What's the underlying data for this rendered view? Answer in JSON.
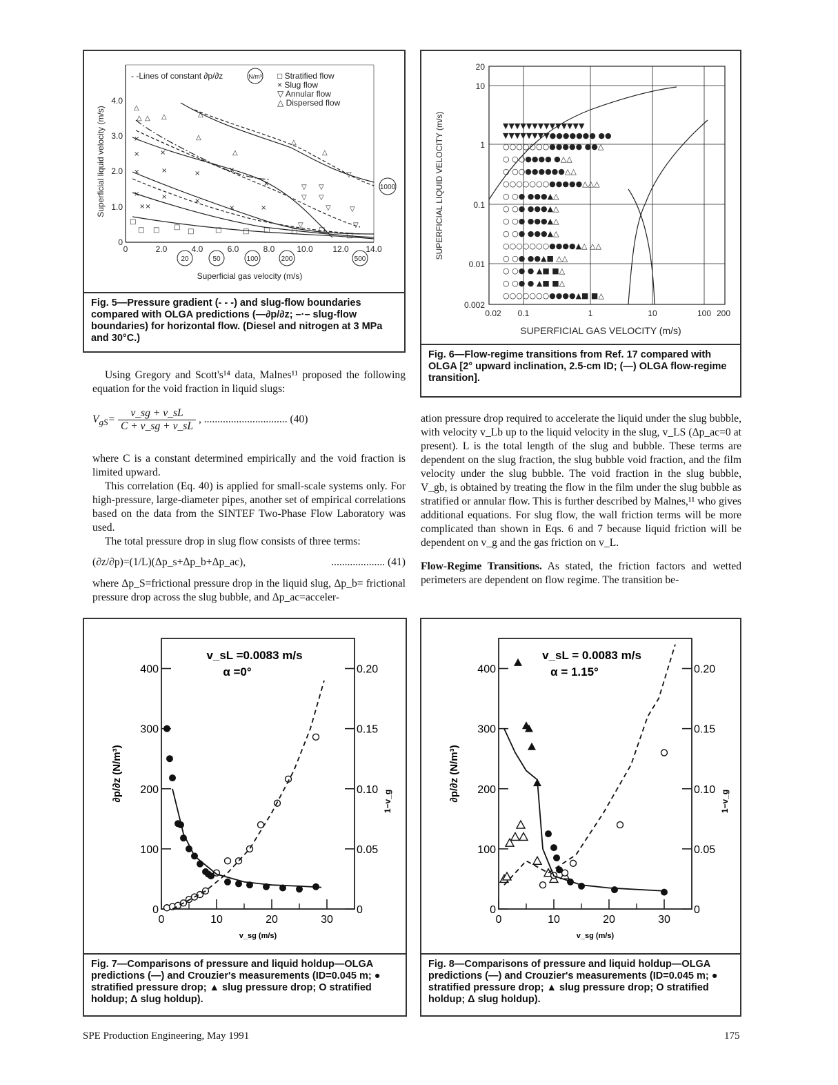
{
  "fig5": {
    "legend": [
      "- -Lines of constant ∂p/∂z",
      "N/m³",
      "□ Stratified flow",
      "× Slug flow",
      "▽ Annular flow",
      "△ Dispersed flow"
    ],
    "xlabel": "Superficial gas velocity (m/s)",
    "ylabel": "Superficial liquid velocity (m/s)",
    "xticks": [
      "0",
      "2.0",
      "4.0",
      "6.0",
      "8.0",
      "10.0",
      "12.0",
      "14.0"
    ],
    "yticks": [
      "0",
      "1.0",
      "2.0",
      "3.0",
      "4.0"
    ],
    "circled": [
      "20",
      "50",
      "100",
      "200",
      "500",
      "1000"
    ],
    "caption": "Fig. 5—Pressure gradient (- - -) and slug-flow boundaries compared with OLGA predictions (—∂p/∂z; –·– slug-flow boundaries) for horizontal flow. (Diesel and nitrogen at 3 MPa and 30°C.)"
  },
  "fig6": {
    "xlabel": "SUPERFICIAL GAS VELOCITY (m/s)",
    "ylabel": "SUPERFICIAL LIQUID VELOCITY (m/s)",
    "xticks": [
      "0.02",
      "0.1",
      "1",
      "10",
      "100",
      "200"
    ],
    "yticks": [
      "20",
      "10",
      "1",
      "0.1",
      "0.01",
      "0.002"
    ],
    "caption": "Fig. 6—Flow-regime transitions from Ref. 17 compared with OLGA [2° upward inclination, 2.5-cm ID; (—) OLGA flow-regime transition]."
  },
  "col_left": {
    "p1": "Using Gregory and Scott's¹⁴ data, Malnes¹¹ proposed the following equation for the void fraction in liquid slugs:",
    "eq40_lhs": "V",
    "eq40_sub": "gS",
    "eq40_num": "v_sg + v_sL",
    "eq40_den": "C + v_sg + v_sL",
    "eq40_no": ", ............................... (40)",
    "p2": "where C is a constant determined empirically and the void fraction is limited upward.",
    "p3": "This correlation (Eq. 40) is applied for small-scale systems only. For high-pressure, large-diameter pipes, another set of empirical correlations based on the data from the SINTEF Two-Phase Flow Laboratory was used.",
    "p4": "The total pressure drop in slug flow consists of three terms:",
    "eq41": "(∂z/∂p)=(1/L)(Δp_s+Δp_b+Δp_ac),",
    "eq41_no": ".................... (41)",
    "p5": "where Δp_S=frictional pressure drop in the liquid slug, Δp_b= frictional pressure drop across the slug bubble, and Δp_ac=acceler-"
  },
  "col_right": {
    "p1": "ation pressure drop required to accelerate the liquid under the slug bubble, with velocity v_Lb up to the liquid velocity in the slug, v_LS (Δp_ac=0 at present). L is the total length of the slug and bubble. These terms are dependent on the slug fraction, the slug bubble void fraction, and the film velocity under the slug bubble. The void fraction in the slug bubble, V_gb, is obtained by treating the flow in the film under the slug bubble as stratified or annular flow. This is further described by Malnes,¹¹ who gives additional equations. For slug flow, the wall friction terms will be more complicated than shown in Eqs. 6 and 7 because liquid friction will be dependent on v_g and the gas friction on v_L.",
    "heading": "Flow-Regime Transitions.",
    "p2": " As stated, the friction factors and wetted perimeters are dependent on flow regime. The transition be-"
  },
  "fig7": {
    "annot1": "v_sL =0.0083 m/s",
    "annot2": "α =0°",
    "xlabel": "v_sg (m/s)",
    "ylabel": "∂p/∂z (N/m³)",
    "y2label": "1−v_g",
    "xticks": [
      "0",
      "10",
      "20",
      "30"
    ],
    "yticks": [
      "0",
      "100",
      "200",
      "300",
      "400"
    ],
    "y2ticks": [
      "0",
      "0.05",
      "0.10",
      "0.15",
      "0.20"
    ],
    "caption": "Fig. 7—Comparisons of pressure and liquid holdup—OLGA predictions (—) and Crouzier's measurements (ID=0.045 m; ● stratified pressure drop; ▲ slug pressure drop; O stratified holdup; Δ slug holdup)."
  },
  "fig8": {
    "annot1": "v_sL = 0.0083 m/s",
    "annot2": "α = 1.15°",
    "xlabel": "v_sg (m/s)",
    "ylabel": "∂p/∂z (N/m³)",
    "y2label": "1−v_g",
    "xticks": [
      "0",
      "10",
      "20",
      "30"
    ],
    "yticks": [
      "0",
      "100",
      "200",
      "300",
      "400"
    ],
    "y2ticks": [
      "0",
      "0.05",
      "0.10",
      "0.15",
      "0.20"
    ],
    "caption": "Fig. 8—Comparisons of pressure and liquid holdup—OLGA predictions (—) and Crouzier's measurements (ID=0.045 m; ● stratified pressure drop; ▲ slug pressure drop; O stratified holdup; Δ slug holdup)."
  },
  "footer": {
    "left": "SPE Production Engineering, May 1991",
    "right": "175"
  },
  "chart_data": [
    {
      "id": "fig7",
      "type": "scatter",
      "xlim": [
        0,
        35
      ],
      "ylim": [
        0,
        450
      ],
      "y2lim": [
        0,
        0.225
      ],
      "series": [
        {
          "name": "stratified pressure drop",
          "marker": "filled-circle",
          "points": [
            [
              1,
              300
            ],
            [
              1.5,
              250
            ],
            [
              2,
              218
            ],
            [
              3,
              142
            ],
            [
              3.5,
              140
            ],
            [
              4,
              118
            ],
            [
              5,
              100
            ],
            [
              6,
              88
            ],
            [
              7,
              75
            ],
            [
              8,
              62
            ],
            [
              8.5,
              58
            ],
            [
              9,
              55
            ],
            [
              12,
              45
            ],
            [
              14,
              42
            ],
            [
              16,
              40
            ],
            [
              19,
              37
            ],
            [
              22,
              35
            ],
            [
              25,
              33
            ],
            [
              28,
              37
            ]
          ]
        },
        {
          "name": "stratified holdup",
          "marker": "open-circle",
          "axis": "right",
          "points": [
            [
              1,
              0.001
            ],
            [
              2,
              0.002
            ],
            [
              3,
              0.003
            ],
            [
              4,
              0.005
            ],
            [
              5,
              0.008
            ],
            [
              6,
              0.01
            ],
            [
              7,
              0.012
            ],
            [
              8,
              0.015
            ],
            [
              10,
              0.03
            ],
            [
              12,
              0.04
            ],
            [
              14,
              0.04
            ],
            [
              16,
              0.05
            ],
            [
              18,
              0.07
            ],
            [
              21,
              0.088
            ],
            [
              23,
              0.108
            ],
            [
              28,
              0.143
            ]
          ]
        },
        {
          "name": "OLGA pressure",
          "marker": "line",
          "points": [
            [
              2,
              200
            ],
            [
              4,
              125
            ],
            [
              6,
              88
            ],
            [
              10,
              58
            ],
            [
              15,
              45
            ],
            [
              20,
              40
            ],
            [
              25,
              38
            ],
            [
              29,
              36
            ]
          ]
        },
        {
          "name": "OLGA holdup",
          "marker": "dashed",
          "axis": "right",
          "points": [
            [
              2,
              0
            ],
            [
              8,
              0.015
            ],
            [
              12,
              0.03
            ],
            [
              16,
              0.05
            ],
            [
              20,
              0.08
            ],
            [
              24,
              0.115
            ],
            [
              27,
              0.15
            ],
            [
              29.5,
              0.19
            ]
          ]
        }
      ]
    },
    {
      "id": "fig8",
      "type": "scatter",
      "xlim": [
        0,
        35
      ],
      "ylim": [
        0,
        450
      ],
      "y2lim": [
        0,
        0.225
      ],
      "series": [
        {
          "name": "slug pressure drop",
          "marker": "filled-triangle",
          "points": [
            [
              3.5,
              410
            ],
            [
              5,
              305
            ],
            [
              5.5,
              300
            ],
            [
              6,
              270
            ],
            [
              7,
              210
            ]
          ]
        },
        {
          "name": "stratified pressure drop",
          "marker": "filled-circle",
          "points": [
            [
              9,
              125
            ],
            [
              10,
              102
            ],
            [
              10.5,
              85
            ],
            [
              11,
              65
            ],
            [
              13,
              45
            ],
            [
              15,
              38
            ],
            [
              21,
              32
            ],
            [
              30,
              28
            ]
          ]
        },
        {
          "name": "slug holdup",
          "marker": "open-triangle",
          "axis": "right",
          "points": [
            [
              1,
              0.025
            ],
            [
              1.5,
              0.027
            ],
            [
              2,
              0.055
            ],
            [
              3,
              0.06
            ],
            [
              4,
              0.07
            ],
            [
              4.5,
              0.06
            ],
            [
              7,
              0.04
            ],
            [
              9,
              0.03
            ],
            [
              10,
              0.025
            ],
            [
              12,
              0.028
            ]
          ]
        },
        {
          "name": "stratified holdup",
          "marker": "open-circle",
          "axis": "right",
          "points": [
            [
              8,
              0.02
            ],
            [
              10,
              0.028
            ],
            [
              12,
              0.03
            ],
            [
              13.5,
              0.038
            ],
            [
              22,
              0.07
            ],
            [
              30,
              0.13
            ]
          ]
        },
        {
          "name": "OLGA pressure",
          "marker": "line",
          "points": [
            [
              1,
              300
            ],
            [
              3,
              260
            ],
            [
              5,
              230
            ],
            [
              7,
              215
            ],
            [
              8,
              100
            ],
            [
              10,
              55
            ],
            [
              15,
              40
            ],
            [
              20,
              35
            ],
            [
              30,
              30
            ]
          ]
        },
        {
          "name": "OLGA holdup",
          "marker": "dashed",
          "axis": "right",
          "points": [
            [
              1,
              0.02
            ],
            [
              5,
              0.04
            ],
            [
              9,
              0.03
            ],
            [
              14,
              0.045
            ],
            [
              19,
              0.08
            ],
            [
              24,
              0.12
            ],
            [
              27,
              0.16
            ],
            [
              29,
              0.175
            ],
            [
              32,
              0.22
            ]
          ]
        }
      ]
    }
  ]
}
